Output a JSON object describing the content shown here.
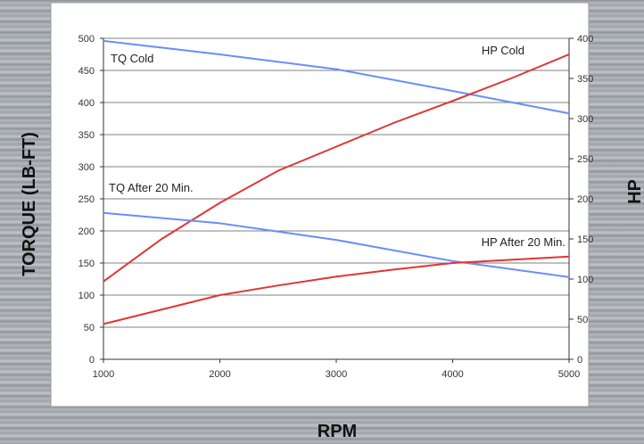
{
  "chart_data": {
    "type": "line",
    "title": "",
    "xlabel": "RPM",
    "ylabel": "TORQUE (LB-FT)",
    "y2label": "HP",
    "xlim": [
      1000,
      5000
    ],
    "ylim": [
      0,
      500
    ],
    "y2lim": [
      0,
      400
    ],
    "x_ticks": [
      1000,
      2000,
      3000,
      4000,
      5000
    ],
    "y_ticks": [
      0,
      50,
      100,
      150,
      200,
      250,
      300,
      350,
      400,
      450,
      500
    ],
    "y2_ticks": [
      0,
      50,
      100,
      150,
      200,
      250,
      300,
      350,
      400
    ],
    "grid": true,
    "series": [
      {
        "name": "TQ Cold",
        "axis": "left",
        "color": "#6b8cff",
        "x": [
          1000,
          2000,
          3000,
          4000,
          5000
        ],
        "values": [
          496,
          475,
          452,
          418,
          383
        ]
      },
      {
        "name": "HP Cold",
        "axis": "right",
        "color": "#e03535",
        "x": [
          1000,
          1500,
          2000,
          2500,
          3000,
          3500,
          4000,
          4500,
          5000
        ],
        "values": [
          97,
          150,
          195,
          235,
          265,
          295,
          322,
          350,
          380
        ]
      },
      {
        "name": "TQ After 20 Min.",
        "axis": "left",
        "color": "#6b8cff",
        "x": [
          1000,
          2000,
          3000,
          4000,
          5000
        ],
        "values": [
          228,
          212,
          186,
          153,
          128
        ]
      },
      {
        "name": "HP After 20 Min.",
        "axis": "right",
        "color": "#e03535",
        "x": [
          1000,
          2000,
          2500,
          3000,
          3500,
          4000,
          4500,
          5000
        ],
        "values": [
          44,
          80,
          92,
          103,
          112,
          120,
          124,
          128
        ]
      }
    ]
  }
}
